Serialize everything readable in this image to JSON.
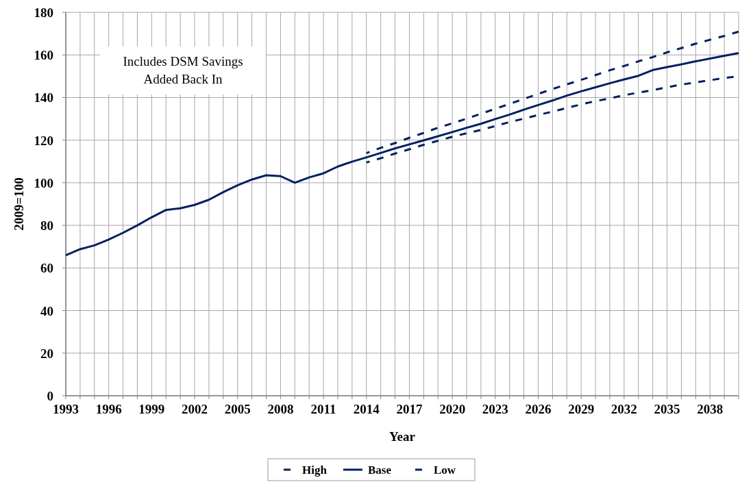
{
  "chart_data": {
    "type": "line",
    "xlabel": "Year",
    "ylabel": "2009=100",
    "annotations": [
      "Includes DSM Savings\nAdded Back In"
    ],
    "xlim": [
      1993,
      2040
    ],
    "xticks": [
      1993,
      {
        "value": 1994,
        "label": null
      },
      {
        "value": 1995,
        "label": null
      },
      1996,
      {
        "value": 1997,
        "label": null
      },
      {
        "value": 1998,
        "label": null
      },
      1999,
      {
        "value": 2000,
        "label": null
      },
      {
        "value": 2001,
        "label": null
      },
      2002,
      {
        "value": 2003,
        "label": null
      },
      {
        "value": 2004,
        "label": null
      },
      2005,
      {
        "value": 2006,
        "label": null
      },
      {
        "value": 2007,
        "label": null
      },
      2008,
      {
        "value": 2009,
        "label": null
      },
      {
        "value": 2010,
        "label": null
      },
      2011,
      {
        "value": 2012,
        "label": null
      },
      {
        "value": 2013,
        "label": null
      },
      2014,
      {
        "value": 2015,
        "label": null
      },
      {
        "value": 2016,
        "label": null
      },
      2017,
      {
        "value": 2018,
        "label": null
      },
      {
        "value": 2019,
        "label": null
      },
      2020,
      {
        "value": 2021,
        "label": null
      },
      {
        "value": 2022,
        "label": null
      },
      2023,
      {
        "value": 2024,
        "label": null
      },
      {
        "value": 2025,
        "label": null
      },
      2026,
      {
        "value": 2027,
        "label": null
      },
      {
        "value": 2028,
        "label": null
      },
      2029,
      {
        "value": 2030,
        "label": null
      },
      {
        "value": 2031,
        "label": null
      },
      2032,
      {
        "value": 2033,
        "label": null
      },
      {
        "value": 2034,
        "label": null
      },
      2035,
      {
        "value": 2036,
        "label": null
      },
      {
        "value": 2037,
        "label": null
      },
      2038,
      {
        "value": 2039,
        "label": null
      },
      {
        "value": 2040,
        "label": null
      }
    ],
    "ylim": [
      0,
      180
    ],
    "yticks": [
      0,
      20,
      40,
      60,
      80,
      100,
      120,
      140,
      160,
      180
    ],
    "grid": true,
    "legend": "bottom",
    "marker": "none",
    "series": [
      {
        "name": "High",
        "color": "#002060",
        "line_style": "dashed",
        "x": [
          2014,
          2015,
          2016,
          2017,
          2018,
          2019,
          2020,
          2021,
          2022,
          2023,
          2024,
          2025,
          2026,
          2027,
          2028,
          2029,
          2030,
          2031,
          2032,
          2033,
          2034,
          2035,
          2036,
          2037,
          2038,
          2039,
          2040
        ],
        "values": [
          113.9,
          116.4,
          118.6,
          121.1,
          123.4,
          125.8,
          127.9,
          130.1,
          132.4,
          134.7,
          137,
          139.4,
          141.7,
          144,
          146.2,
          148.3,
          150.5,
          152.8,
          154.8,
          157,
          159,
          161.2,
          163.2,
          165.3,
          167.1,
          168.9,
          170.9
        ]
      },
      {
        "name": "Base",
        "color": "#002060",
        "line_style": "solid",
        "x": [
          1993,
          1994,
          1995,
          1996,
          1997,
          1998,
          1999,
          2000,
          2001,
          2002,
          2003,
          2004,
          2005,
          2006,
          2007,
          2008,
          2009,
          2010,
          2011,
          2012,
          2013,
          2014,
          2015,
          2016,
          2017,
          2018,
          2019,
          2020,
          2021,
          2022,
          2023,
          2024,
          2025,
          2026,
          2027,
          2028,
          2029,
          2030,
          2031,
          2032,
          2033,
          2034,
          2035,
          2036,
          2037,
          2038,
          2039,
          2040
        ],
        "values": [
          65.9,
          68.8,
          70.6,
          73.3,
          76.5,
          80,
          83.8,
          87.2,
          88,
          89.6,
          92,
          95.6,
          98.8,
          101.5,
          103.5,
          103.1,
          100,
          102.5,
          104.4,
          107.6,
          109.9,
          111.9,
          114,
          116.1,
          118,
          119.9,
          121.8,
          123.8,
          125.8,
          127.7,
          129.9,
          132,
          134.3,
          136.5,
          138.6,
          140.9,
          142.9,
          144.8,
          146.7,
          148.5,
          150.2,
          152.9,
          154.3,
          155.6,
          157,
          158.3,
          159.6,
          160.9
        ]
      },
      {
        "name": "Low",
        "color": "#002060",
        "line_style": "dashed",
        "x": [
          2014,
          2015,
          2016,
          2017,
          2018,
          2019,
          2020,
          2021,
          2022,
          2023,
          2024,
          2025,
          2026,
          2027,
          2028,
          2029,
          2030,
          2031,
          2032,
          2033,
          2034,
          2035,
          2036,
          2037,
          2038,
          2039,
          2040
        ],
        "values": [
          109.5,
          111.5,
          113.7,
          115.7,
          117.8,
          119.7,
          121.6,
          123.2,
          124.8,
          126.6,
          128.5,
          130.1,
          131.8,
          133.4,
          135.1,
          136.8,
          138.3,
          139.6,
          141.1,
          142.3,
          143.5,
          144.8,
          146.1,
          147.1,
          148.1,
          149.2,
          150
        ]
      }
    ]
  }
}
